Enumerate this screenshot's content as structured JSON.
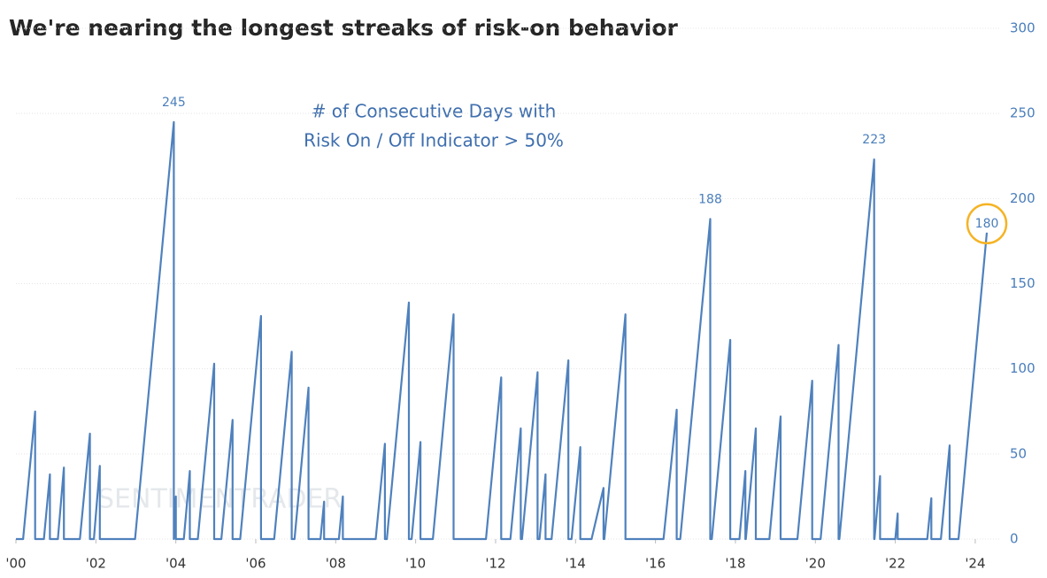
{
  "chart_data": {
    "type": "line",
    "title": "We're nearing the longest streaks of risk-on behavior",
    "subtitle": "# of Consecutive Days with",
    "subtitle2": "Risk On / Off Indicator > 50%",
    "watermark": "SENTIMENTRADER",
    "color": "#4f81bd",
    "x": [
      2000,
      2000.18,
      2000.48,
      2000.48,
      2000.7,
      2000.85,
      2000.85,
      2001.05,
      2001.2,
      2001.2,
      2001.6,
      2001.85,
      2001.85,
      2001.95,
      2002.1,
      2002.1,
      2002.98,
      2003.95,
      2003.95,
      2004.0,
      2004.0,
      2004.2,
      2004.35,
      2004.35,
      2004.55,
      2004.96,
      2004.96,
      2005.14,
      2005.42,
      2005.42,
      2005.61,
      2006.13,
      2006.13,
      2006.46,
      2006.9,
      2006.9,
      2006.97,
      2007.32,
      2007.32,
      2007.62,
      2007.71,
      2007.71,
      2008.08,
      2008.18,
      2008.18,
      2009.0,
      2009.23,
      2009.23,
      2009.28,
      2009.83,
      2009.83,
      2009.9,
      2010.12,
      2010.12,
      2010.43,
      2010.95,
      2010.95,
      2011.76,
      2012.14,
      2012.14,
      2012.37,
      2012.63,
      2012.63,
      2012.66,
      2013.05,
      2013.05,
      2013.1,
      2013.25,
      2013.25,
      2013.4,
      2013.82,
      2013.82,
      2013.9,
      2014.12,
      2014.12,
      2014.4,
      2014.7,
      2014.7,
      2014.72,
      2015.25,
      2015.25,
      2016.2,
      2016.53,
      2016.53,
      2016.62,
      2017.37,
      2017.37,
      2017.41,
      2017.87,
      2017.87,
      2018.1,
      2018.25,
      2018.25,
      2018.26,
      2018.51,
      2018.51,
      2018.85,
      2019.13,
      2019.13,
      2019.55,
      2019.92,
      2019.92,
      2020.13,
      2020.58,
      2020.58,
      2020.6,
      2021.47,
      2021.47,
      2021.48,
      2021.62,
      2021.62,
      2022.0,
      2022.06,
      2022.06,
      2022.8,
      2022.9,
      2022.9,
      2023.14,
      2023.36,
      2023.36,
      2023.58,
      2024.29
    ],
    "values": [
      0,
      0,
      75,
      0,
      0,
      38,
      0,
      0,
      42,
      0,
      0,
      62,
      0,
      0,
      43,
      0,
      0,
      245,
      0,
      25,
      0,
      0,
      40,
      0,
      0,
      103,
      0,
      0,
      70,
      0,
      0,
      131,
      0,
      0,
      110,
      0,
      0,
      89,
      0,
      0,
      22,
      0,
      0,
      25,
      0,
      0,
      56,
      0,
      0,
      139,
      0,
      0,
      57,
      0,
      0,
      132,
      0,
      0,
      95,
      0,
      0,
      65,
      0,
      0,
      98,
      0,
      0,
      38,
      0,
      0,
      105,
      0,
      0,
      54,
      0,
      0,
      30,
      0,
      0,
      132,
      0,
      0,
      76,
      0,
      0,
      188,
      0,
      0,
      117,
      0,
      0,
      40,
      0,
      0,
      65,
      0,
      0,
      72,
      0,
      0,
      93,
      0,
      0,
      114,
      0,
      0,
      223,
      0,
      0,
      37,
      0,
      0,
      15,
      0,
      0,
      24,
      0,
      0,
      55,
      0,
      0,
      180
    ],
    "annotations": [
      {
        "label": "245",
        "x": 2003.95,
        "y": 245
      },
      {
        "label": "188",
        "x": 2017.37,
        "y": 188
      },
      {
        "label": "223",
        "x": 2021.47,
        "y": 223
      },
      {
        "label": "180",
        "x": 2024.29,
        "y": 180,
        "highlight": true
      }
    ],
    "highlight_color": "#f5b324",
    "xlim": [
      2000,
      2024.4
    ],
    "xticks": [
      {
        "value": 2000,
        "label": "'00"
      },
      {
        "value": 2002,
        "label": "'02"
      },
      {
        "value": 2004,
        "label": "'04"
      },
      {
        "value": 2006,
        "label": "'06"
      },
      {
        "value": 2008,
        "label": "'08"
      },
      {
        "value": 2010,
        "label": "'10"
      },
      {
        "value": 2012,
        "label": "'12"
      },
      {
        "value": 2014,
        "label": "'14"
      },
      {
        "value": 2016,
        "label": "'16"
      },
      {
        "value": 2018,
        "label": "'18"
      },
      {
        "value": 2020,
        "label": "'20"
      },
      {
        "value": 2022,
        "label": "'22"
      },
      {
        "value": 2024,
        "label": "'24"
      }
    ],
    "ylim": [
      0,
      300
    ],
    "yticks": [
      0,
      50,
      100,
      150,
      200,
      250,
      300
    ],
    "grid": true
  }
}
